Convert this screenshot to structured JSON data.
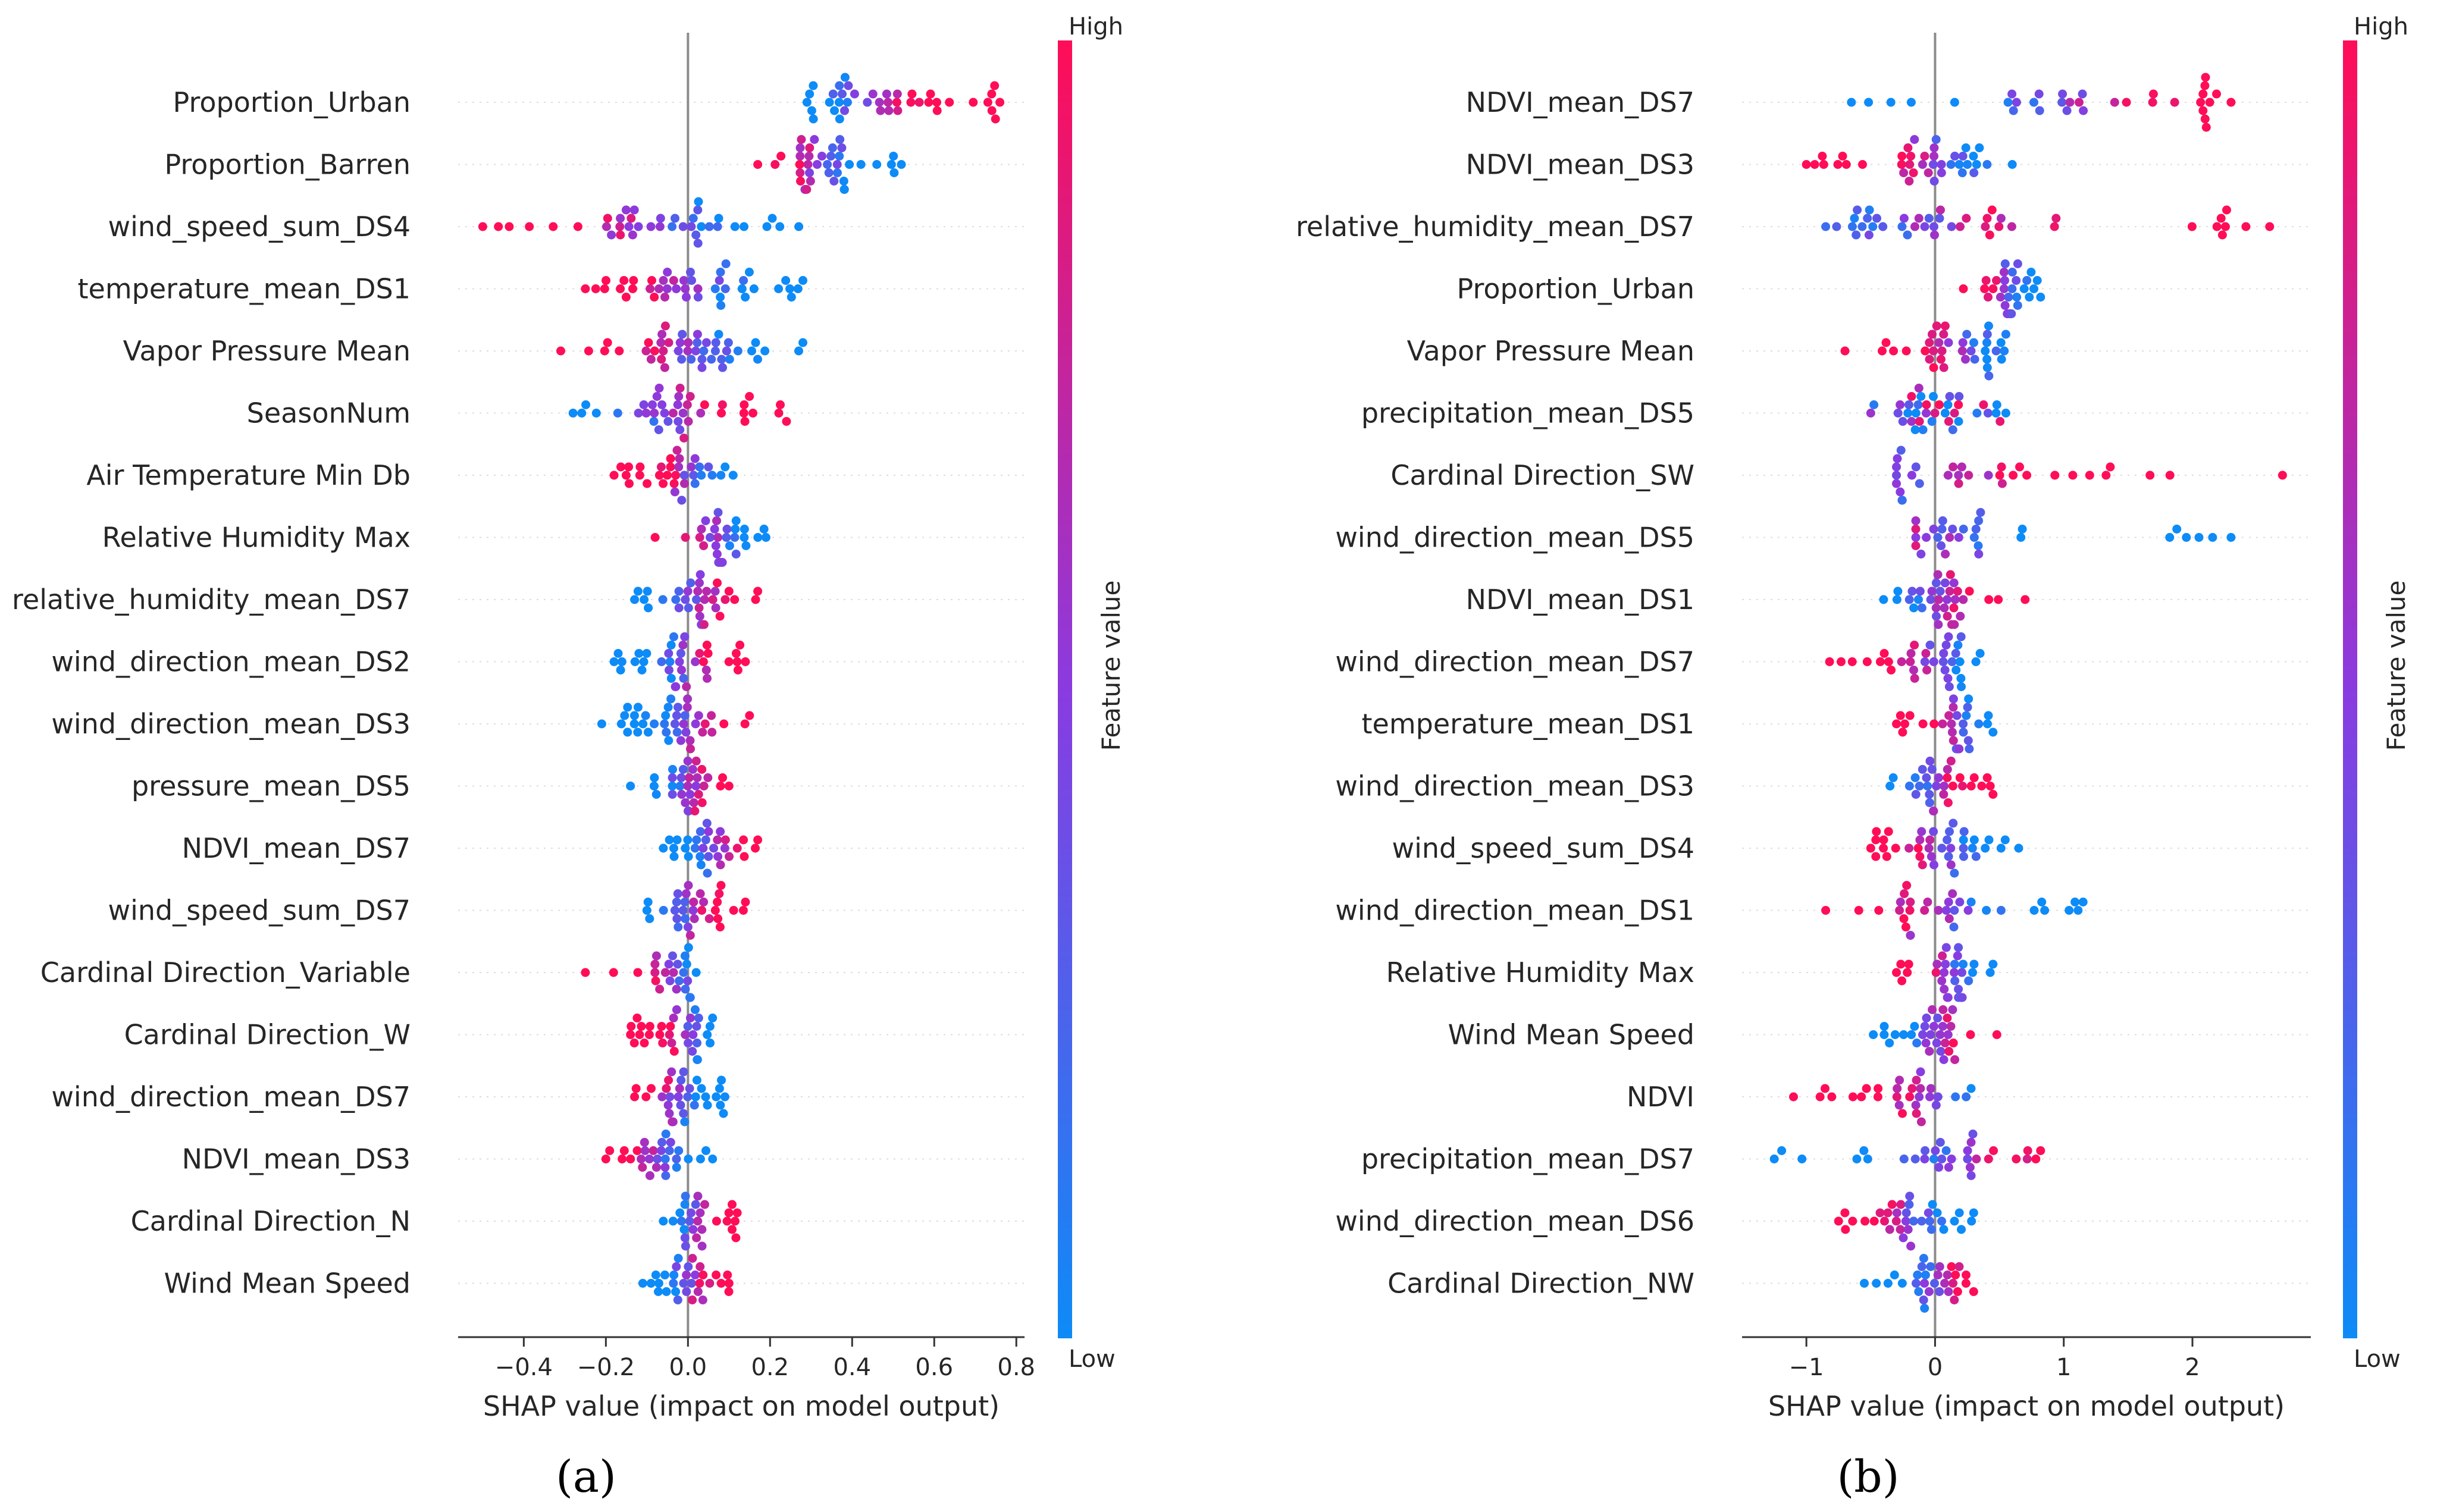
{
  "figure": {
    "caption_a": "(a)",
    "caption_b": "(b)"
  },
  "colors": {
    "low": "#0d8bf7",
    "mid": "#8a3be0",
    "high": "#ff0d57",
    "axis": "#333333",
    "zero_line": "#8c8c8c",
    "grid_dots": "#dddddd"
  },
  "chart_data": [
    {
      "id": "a",
      "type": "scatter",
      "subtype": "shap-beeswarm",
      "xlabel": "SHAP value (impact on model output)",
      "xlim": [
        -0.56,
        0.82
      ],
      "xticks": [
        -0.4,
        -0.2,
        0.0,
        0.2,
        0.4,
        0.6,
        0.8
      ],
      "xtick_labels": [
        "−0.4",
        "−0.2",
        "0.0",
        "0.2",
        "0.4",
        "0.6",
        "0.8"
      ],
      "colorbar": {
        "label": "Feature value",
        "high": "High",
        "low": "Low"
      },
      "features": [
        {
          "name": "Proportion_Urban",
          "min": 0.29,
          "max": 0.76,
          "split": 0.45,
          "low_side": "left",
          "n": 42
        },
        {
          "name": "Proportion_Barren",
          "min": 0.17,
          "max": 0.52,
          "split": 0.32,
          "low_side": "right",
          "n": 40
        },
        {
          "name": "wind_speed_sum_DS4",
          "min": -0.5,
          "max": 0.27,
          "split": -0.1,
          "low_side": "right",
          "n": 40
        },
        {
          "name": "temperature_mean_DS1",
          "min": -0.25,
          "max": 0.28,
          "split": 0.0,
          "low_side": "right",
          "n": 44
        },
        {
          "name": "Vapor Pressure Mean",
          "min": -0.31,
          "max": 0.28,
          "split": 0.0,
          "low_side": "right",
          "n": 46
        },
        {
          "name": "SeasonNum",
          "min": -0.28,
          "max": 0.24,
          "split": -0.05,
          "low_side": "left",
          "n": 40
        },
        {
          "name": "Air Temperature Min Db",
          "min": -0.18,
          "max": 0.11,
          "split": 0.0,
          "low_side": "right",
          "n": 34
        },
        {
          "name": "Relative Humidity Max",
          "min": -0.08,
          "max": 0.19,
          "split": 0.07,
          "low_side": "right",
          "n": 32
        },
        {
          "name": "relative_humidity_mean_DS7",
          "min": -0.13,
          "max": 0.17,
          "split": 0.02,
          "low_side": "left",
          "n": 34
        },
        {
          "name": "wind_direction_mean_DS2",
          "min": -0.18,
          "max": 0.14,
          "split": 0.0,
          "low_side": "left",
          "n": 38
        },
        {
          "name": "wind_direction_mean_DS3",
          "min": -0.21,
          "max": 0.15,
          "split": 0.0,
          "low_side": "left",
          "n": 40
        },
        {
          "name": "pressure_mean_DS5",
          "min": -0.14,
          "max": 0.1,
          "split": 0.0,
          "low_side": "left",
          "n": 34
        },
        {
          "name": "NDVI_mean_DS7",
          "min": -0.06,
          "max": 0.17,
          "split": 0.06,
          "low_side": "left",
          "n": 32
        },
        {
          "name": "wind_speed_sum_DS7",
          "min": -0.1,
          "max": 0.14,
          "split": 0.0,
          "low_side": "left",
          "n": 32
        },
        {
          "name": "Cardinal Direction_Variable",
          "min": -0.25,
          "max": 0.02,
          "split": -0.04,
          "low_side": "right",
          "n": 26
        },
        {
          "name": "Cardinal Direction_W",
          "min": -0.14,
          "max": 0.06,
          "split": -0.01,
          "low_side": "right",
          "n": 34
        },
        {
          "name": "wind_direction_mean_DS7",
          "min": -0.13,
          "max": 0.09,
          "split": -0.03,
          "low_side": "right",
          "n": 34
        },
        {
          "name": "NDVI_mean_DS3",
          "min": -0.2,
          "max": 0.06,
          "split": -0.07,
          "low_side": "right",
          "n": 30
        },
        {
          "name": "Cardinal Direction_N",
          "min": -0.06,
          "max": 0.12,
          "split": 0.02,
          "low_side": "left",
          "n": 28
        },
        {
          "name": "Wind Mean Speed",
          "min": -0.11,
          "max": 0.1,
          "split": 0.0,
          "low_side": "left",
          "n": 32
        }
      ]
    },
    {
      "id": "b",
      "type": "scatter",
      "subtype": "shap-beeswarm",
      "xlabel": "SHAP value (impact on model output)",
      "xlim": [
        -1.5,
        2.92
      ],
      "xticks": [
        -1,
        0,
        1,
        2
      ],
      "xtick_labels": [
        "−1",
        "0",
        "1",
        "2"
      ],
      "colorbar": {
        "label": "Feature value",
        "high": "High",
        "low": "Low"
      },
      "features": [
        {
          "name": "NDVI_mean_DS7",
          "min": -0.65,
          "max": 2.3,
          "split": 1.0,
          "low_side": "left",
          "n": 34
        },
        {
          "name": "NDVI_mean_DS3",
          "min": -1.0,
          "max": 0.6,
          "split": 0.0,
          "low_side": "right",
          "n": 40
        },
        {
          "name": "relative_humidity_mean_DS7",
          "min": -0.85,
          "max": 2.6,
          "split": -0.05,
          "low_side": "left",
          "n": 44
        },
        {
          "name": "Proportion_Urban",
          "min": 0.22,
          "max": 0.82,
          "split": 0.55,
          "low_side": "right",
          "n": 30
        },
        {
          "name": "Vapor Pressure Mean",
          "min": -0.7,
          "max": 0.55,
          "split": 0.2,
          "low_side": "right",
          "n": 38
        },
        {
          "name": "precipitation_mean_DS5",
          "min": -0.5,
          "max": 0.55,
          "split": 0.0,
          "low_side": "both",
          "n": 38
        },
        {
          "name": "Cardinal Direction_SW",
          "min": -0.3,
          "max": 2.7,
          "split": 0.0,
          "low_side": "left",
          "n": 32
        },
        {
          "name": "wind_direction_mean_DS5",
          "min": -0.15,
          "max": 2.3,
          "split": 0.0,
          "low_side": "right",
          "n": 30
        },
        {
          "name": "NDVI_mean_DS1",
          "min": -0.4,
          "max": 0.7,
          "split": 0.0,
          "low_side": "left",
          "n": 36
        },
        {
          "name": "wind_direction_mean_DS7",
          "min": -0.82,
          "max": 0.35,
          "split": 0.0,
          "low_side": "right",
          "n": 36
        },
        {
          "name": "temperature_mean_DS1",
          "min": -0.3,
          "max": 0.45,
          "split": 0.15,
          "low_side": "right",
          "n": 30
        },
        {
          "name": "wind_direction_mean_DS3",
          "min": -0.35,
          "max": 0.45,
          "split": 0.0,
          "low_side": "left",
          "n": 32
        },
        {
          "name": "wind_speed_sum_DS4",
          "min": -0.5,
          "max": 0.65,
          "split": 0.05,
          "low_side": "right",
          "n": 40
        },
        {
          "name": "wind_direction_mean_DS1",
          "min": -0.85,
          "max": 1.15,
          "split": 0.05,
          "low_side": "right",
          "n": 34
        },
        {
          "name": "Relative Humidity Max",
          "min": -0.3,
          "max": 0.45,
          "split": 0.1,
          "low_side": "right",
          "n": 32
        },
        {
          "name": "Wind Mean Speed",
          "min": -0.48,
          "max": 0.48,
          "split": 0.0,
          "low_side": "left",
          "n": 34
        },
        {
          "name": "NDVI",
          "min": -1.1,
          "max": 0.28,
          "split": -0.05,
          "low_side": "right",
          "n": 30
        },
        {
          "name": "precipitation_mean_DS7",
          "min": -1.25,
          "max": 0.82,
          "split": 0.2,
          "low_side": "left",
          "n": 32
        },
        {
          "name": "wind_direction_mean_DS6",
          "min": -0.75,
          "max": 0.3,
          "split": -0.2,
          "low_side": "right",
          "n": 36
        },
        {
          "name": "Cardinal Direction_NW",
          "min": -0.55,
          "max": 0.3,
          "split": 0.0,
          "low_side": "left",
          "n": 32
        }
      ]
    }
  ]
}
